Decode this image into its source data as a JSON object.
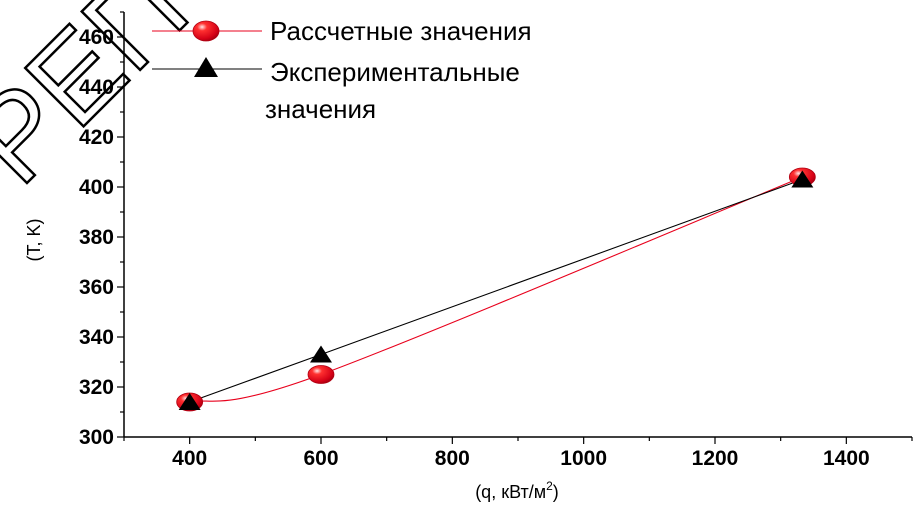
{
  "chart_data": {
    "type": "line",
    "xlabel": "(q, кВт/м",
    "xlabel_sup": "2",
    "xlabel_close": ")",
    "ylabel": "(T, K)",
    "xlim": [
      300,
      1500
    ],
    "ylim": [
      300,
      470
    ],
    "x_ticks": [
      400,
      600,
      800,
      1000,
      1200,
      1400
    ],
    "y_ticks": [
      300,
      320,
      340,
      360,
      380,
      400,
      420,
      440,
      460
    ],
    "legend_position": "top",
    "series": [
      {
        "name": "Рассчетные значения",
        "marker": "circle",
        "color": "#e8001c",
        "line": "smooth",
        "x": [
          400,
          600,
          1333
        ],
        "y": [
          314,
          325,
          404
        ]
      },
      {
        "name": "Экспериментальные значения",
        "marker": "triangle",
        "color": "#000000",
        "line": "straight",
        "x": [
          400,
          600,
          1333
        ],
        "y": [
          314,
          333,
          403
        ]
      }
    ],
    "legend": {
      "entry1": "Рассчетные значения",
      "entry2_line1": "Экспериментальные",
      "entry2_line2": "значения"
    }
  },
  "watermark": {
    "text": "РЕПОЗИТОРИЙ"
  }
}
